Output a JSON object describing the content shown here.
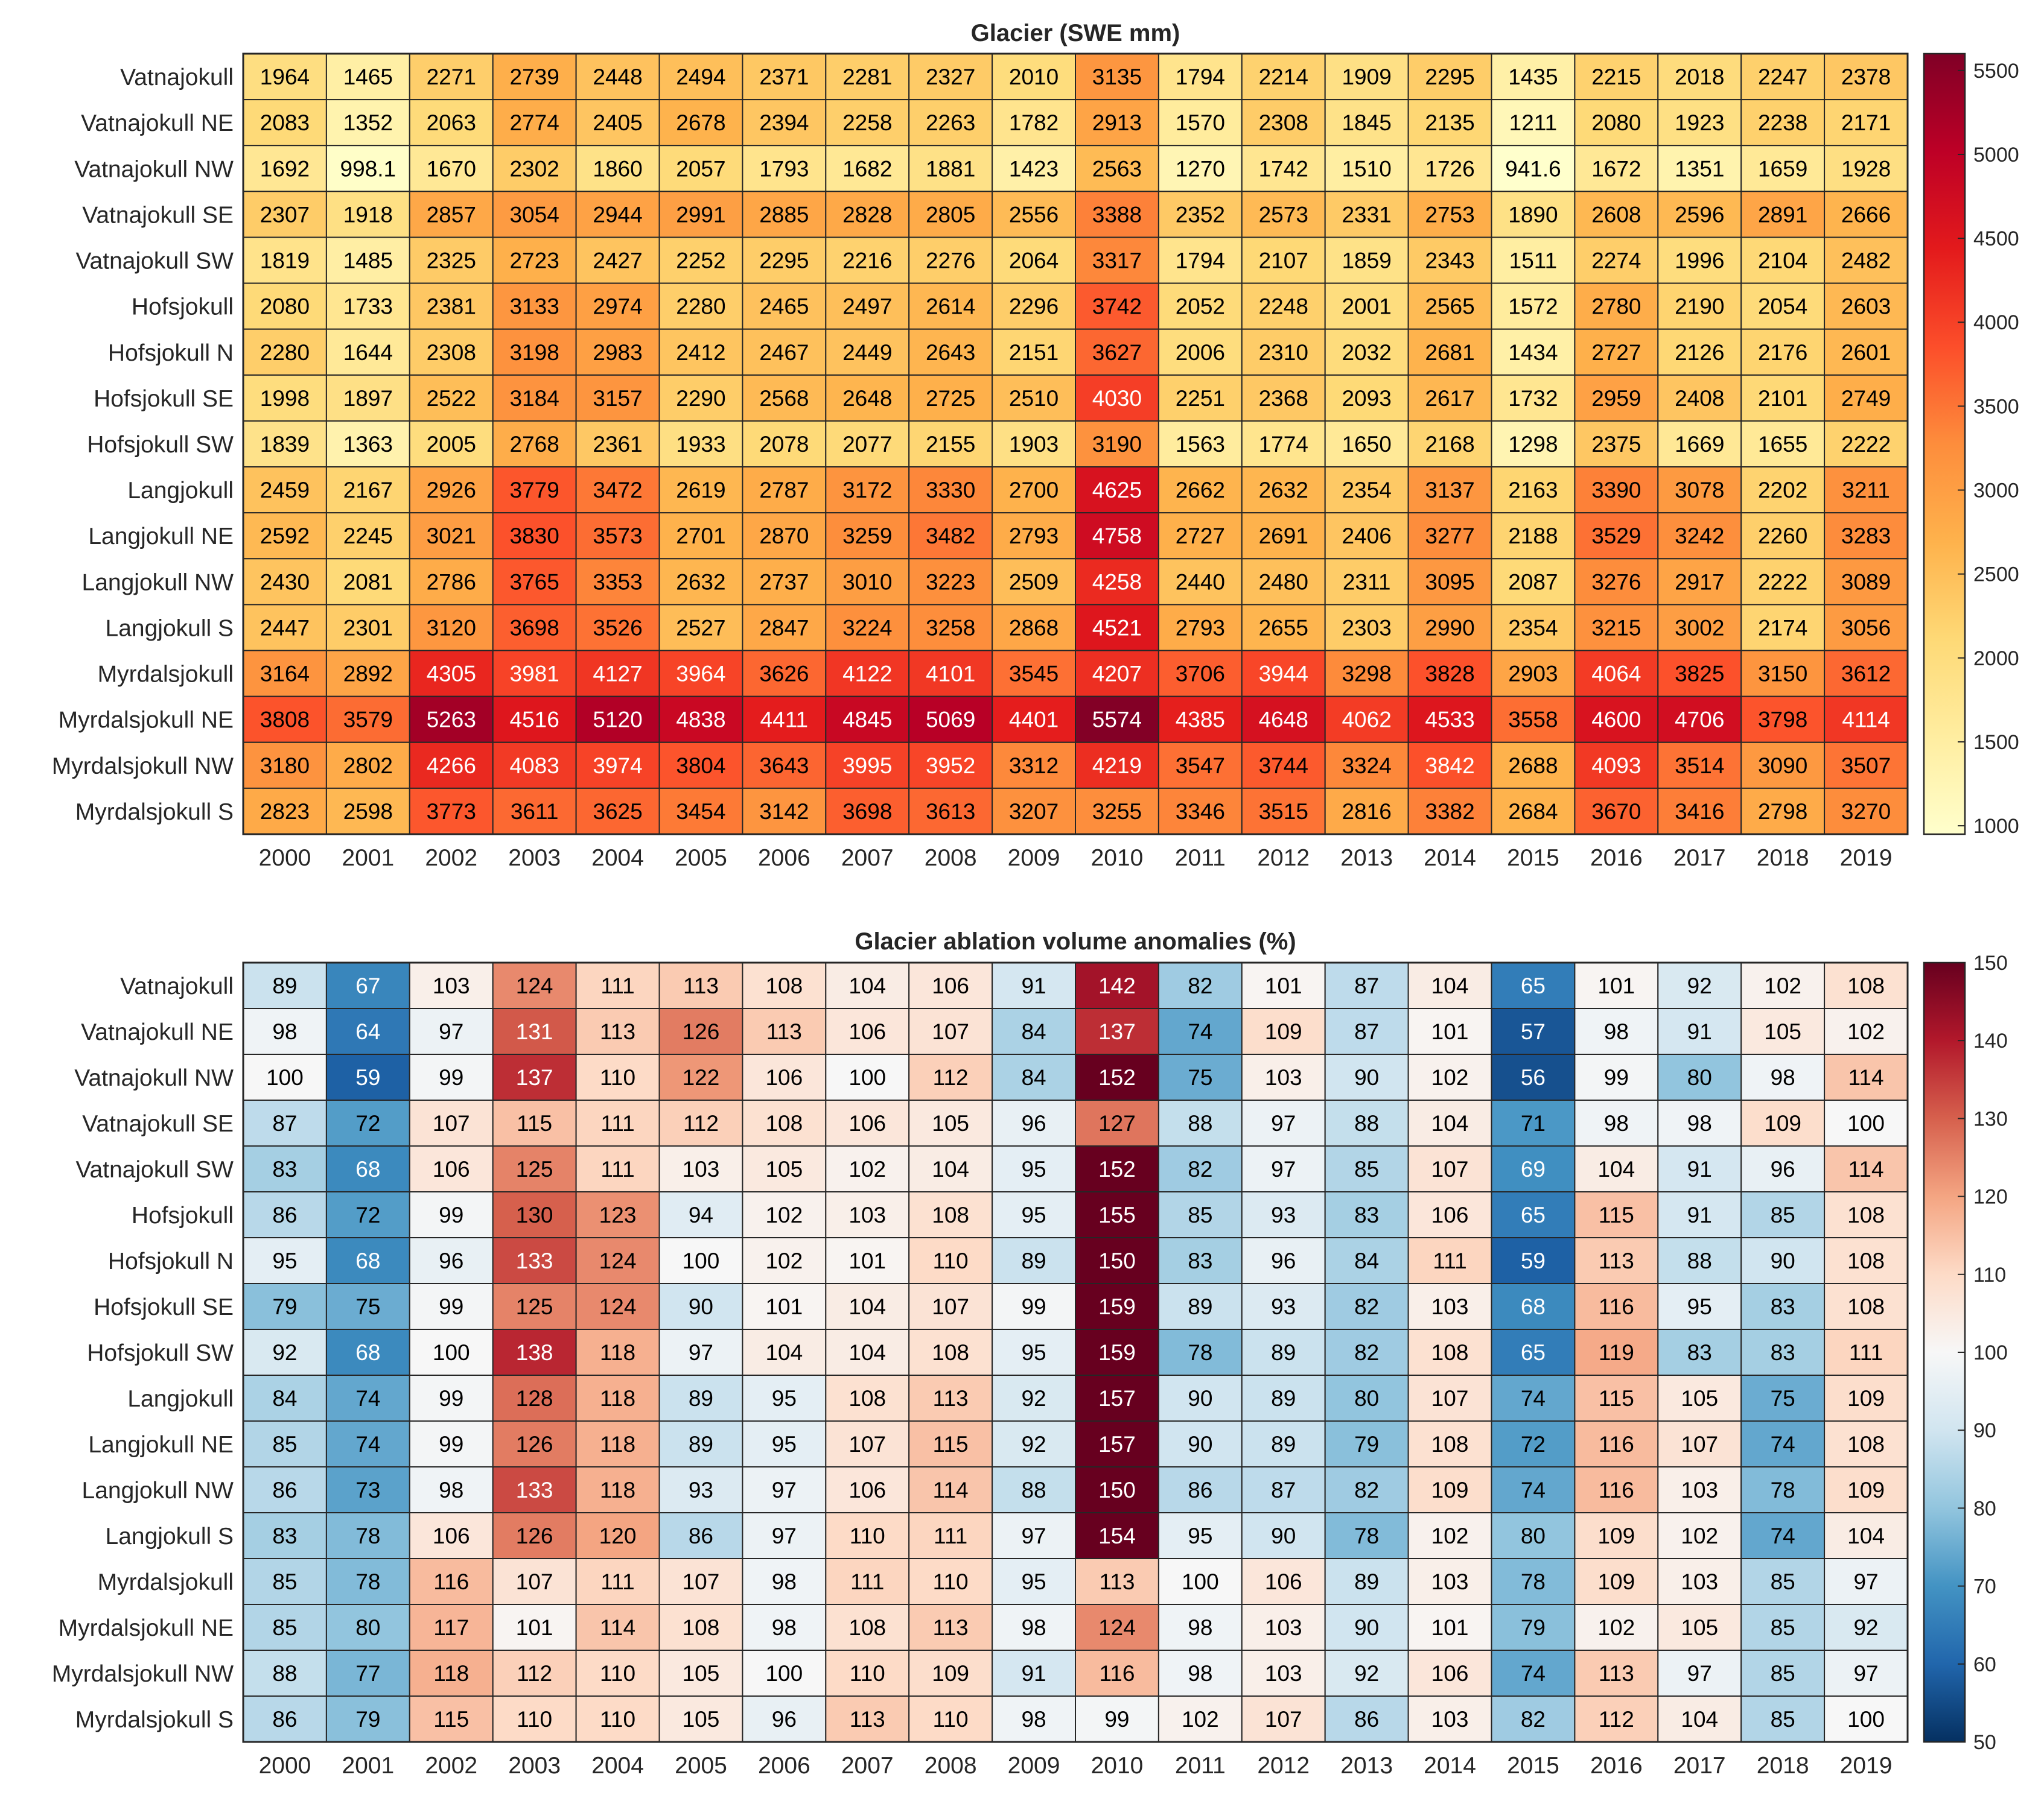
{
  "chart_data": [
    {
      "type": "heatmap",
      "title": "Glacier (SWE mm)",
      "xlabel": "",
      "ylabel": "",
      "x": [
        "2000",
        "2001",
        "2002",
        "2003",
        "2004",
        "2005",
        "2006",
        "2007",
        "2008",
        "2009",
        "2010",
        "2011",
        "2012",
        "2013",
        "2014",
        "2015",
        "2016",
        "2017",
        "2018",
        "2019"
      ],
      "y": [
        "Vatnajokull",
        "Vatnajokull NE",
        "Vatnajokull NW",
        "Vatnajokull SE",
        "Vatnajokull SW",
        "Hofsjokull",
        "Hofsjokull N",
        "Hofsjokull SE",
        "Hofsjokull SW",
        "Langjokull",
        "Langjokull NE",
        "Langjokull NW",
        "Langjokull S",
        "Myrdalsjokull",
        "Myrdalsjokull NE",
        "Myrdalsjokull NW",
        "Myrdalsjokull S"
      ],
      "values": [
        [
          "1964",
          "1465",
          "2271",
          "2739",
          "2448",
          "2494",
          "2371",
          "2281",
          "2327",
          "2010",
          "3135",
          "1794",
          "2214",
          "1909",
          "2295",
          "1435",
          "2215",
          "2018",
          "2247",
          "2378"
        ],
        [
          "2083",
          "1352",
          "2063",
          "2774",
          "2405",
          "2678",
          "2394",
          "2258",
          "2263",
          "1782",
          "2913",
          "1570",
          "2308",
          "1845",
          "2135",
          "1211",
          "2080",
          "1923",
          "2238",
          "2171"
        ],
        [
          "1692",
          "998.1",
          "1670",
          "2302",
          "1860",
          "2057",
          "1793",
          "1682",
          "1881",
          "1423",
          "2563",
          "1270",
          "1742",
          "1510",
          "1726",
          "941.6",
          "1672",
          "1351",
          "1659",
          "1928"
        ],
        [
          "2307",
          "1918",
          "2857",
          "3054",
          "2944",
          "2991",
          "2885",
          "2828",
          "2805",
          "2556",
          "3388",
          "2352",
          "2573",
          "2331",
          "2753",
          "1890",
          "2608",
          "2596",
          "2891",
          "2666"
        ],
        [
          "1819",
          "1485",
          "2325",
          "2723",
          "2427",
          "2252",
          "2295",
          "2216",
          "2276",
          "2064",
          "3317",
          "1794",
          "2107",
          "1859",
          "2343",
          "1511",
          "2274",
          "1996",
          "2104",
          "2482"
        ],
        [
          "2080",
          "1733",
          "2381",
          "3133",
          "2974",
          "2280",
          "2465",
          "2497",
          "2614",
          "2296",
          "3742",
          "2052",
          "2248",
          "2001",
          "2565",
          "1572",
          "2780",
          "2190",
          "2054",
          "2603"
        ],
        [
          "2280",
          "1644",
          "2308",
          "3198",
          "2983",
          "2412",
          "2467",
          "2449",
          "2643",
          "2151",
          "3627",
          "2006",
          "2310",
          "2032",
          "2681",
          "1434",
          "2727",
          "2126",
          "2176",
          "2601"
        ],
        [
          "1998",
          "1897",
          "2522",
          "3184",
          "3157",
          "2290",
          "2568",
          "2648",
          "2725",
          "2510",
          "4030",
          "2251",
          "2368",
          "2093",
          "2617",
          "1732",
          "2959",
          "2408",
          "2101",
          "2749"
        ],
        [
          "1839",
          "1363",
          "2005",
          "2768",
          "2361",
          "1933",
          "2078",
          "2077",
          "2155",
          "1903",
          "3190",
          "1563",
          "1774",
          "1650",
          "2168",
          "1298",
          "2375",
          "1669",
          "1655",
          "2222"
        ],
        [
          "2459",
          "2167",
          "2926",
          "3779",
          "3472",
          "2619",
          "2787",
          "3172",
          "3330",
          "2700",
          "4625",
          "2662",
          "2632",
          "2354",
          "3137",
          "2163",
          "3390",
          "3078",
          "2202",
          "3211"
        ],
        [
          "2592",
          "2245",
          "3021",
          "3830",
          "3573",
          "2701",
          "2870",
          "3259",
          "3482",
          "2793",
          "4758",
          "2727",
          "2691",
          "2406",
          "3277",
          "2188",
          "3529",
          "3242",
          "2260",
          "3283"
        ],
        [
          "2430",
          "2081",
          "2786",
          "3765",
          "3353",
          "2632",
          "2737",
          "3010",
          "3223",
          "2509",
          "4258",
          "2440",
          "2480",
          "2311",
          "3095",
          "2087",
          "3276",
          "2917",
          "2222",
          "3089"
        ],
        [
          "2447",
          "2301",
          "3120",
          "3698",
          "3526",
          "2527",
          "2847",
          "3224",
          "3258",
          "2868",
          "4521",
          "2793",
          "2655",
          "2303",
          "2990",
          "2354",
          "3215",
          "3002",
          "2174",
          "3056"
        ],
        [
          "3164",
          "2892",
          "4305",
          "3981",
          "4127",
          "3964",
          "3626",
          "4122",
          "4101",
          "3545",
          "4207",
          "3706",
          "3944",
          "3298",
          "3828",
          "2903",
          "4064",
          "3825",
          "3150",
          "3612"
        ],
        [
          "3808",
          "3579",
          "5263",
          "4516",
          "5120",
          "4838",
          "4411",
          "4845",
          "5069",
          "4401",
          "5574",
          "4385",
          "4648",
          "4062",
          "4533",
          "3558",
          "4600",
          "4706",
          "3798",
          "4114"
        ],
        [
          "3180",
          "2802",
          "4266",
          "4083",
          "3974",
          "3804",
          "3643",
          "3995",
          "3952",
          "3312",
          "4219",
          "3547",
          "3744",
          "3324",
          "3842",
          "2688",
          "4093",
          "3514",
          "3090",
          "3507"
        ],
        [
          "2823",
          "2598",
          "3773",
          "3611",
          "3625",
          "3454",
          "3142",
          "3698",
          "3613",
          "3207",
          "3255",
          "3346",
          "3515",
          "2816",
          "3382",
          "2684",
          "3670",
          "3416",
          "2798",
          "3270"
        ]
      ],
      "colorbar": {
        "range": [
          950,
          5600
        ],
        "ticks": [
          "1000",
          "1500",
          "2000",
          "2500",
          "3000",
          "3500",
          "4000",
          "4500",
          "5000",
          "5500"
        ],
        "colormap": "YlOrRd",
        "stops": [
          "#ffffcc",
          "#ffeda0",
          "#fed976",
          "#feb24c",
          "#fd8d3c",
          "#fc4e2a",
          "#e31a1c",
          "#bd0026",
          "#800026"
        ]
      }
    },
    {
      "type": "heatmap",
      "title": "Glacier ablation volume anomalies (%)",
      "xlabel": "",
      "ylabel": "",
      "x": [
        "2000",
        "2001",
        "2002",
        "2003",
        "2004",
        "2005",
        "2006",
        "2007",
        "2008",
        "2009",
        "2010",
        "2011",
        "2012",
        "2013",
        "2014",
        "2015",
        "2016",
        "2017",
        "2018",
        "2019"
      ],
      "y": [
        "Vatnajokull",
        "Vatnajokull NE",
        "Vatnajokull NW",
        "Vatnajokull SE",
        "Vatnajokull SW",
        "Hofsjokull",
        "Hofsjokull N",
        "Hofsjokull SE",
        "Hofsjokull SW",
        "Langjokull",
        "Langjokull NE",
        "Langjokull NW",
        "Langjokull S",
        "Myrdalsjokull",
        "Myrdalsjokull NE",
        "Myrdalsjokull NW",
        "Myrdalsjokull S"
      ],
      "values": [
        [
          "89",
          "67",
          "103",
          "124",
          "111",
          "113",
          "108",
          "104",
          "106",
          "91",
          "142",
          "82",
          "101",
          "87",
          "104",
          "65",
          "101",
          "92",
          "102",
          "108"
        ],
        [
          "98",
          "64",
          "97",
          "131",
          "113",
          "126",
          "113",
          "106",
          "107",
          "84",
          "137",
          "74",
          "109",
          "87",
          "101",
          "57",
          "98",
          "91",
          "105",
          "102"
        ],
        [
          "100",
          "59",
          "99",
          "137",
          "110",
          "122",
          "106",
          "100",
          "112",
          "84",
          "152",
          "75",
          "103",
          "90",
          "102",
          "56",
          "99",
          "80",
          "98",
          "114"
        ],
        [
          "87",
          "72",
          "107",
          "115",
          "111",
          "112",
          "108",
          "106",
          "105",
          "96",
          "127",
          "88",
          "97",
          "88",
          "104",
          "71",
          "98",
          "98",
          "109",
          "100"
        ],
        [
          "83",
          "68",
          "106",
          "125",
          "111",
          "103",
          "105",
          "102",
          "104",
          "95",
          "152",
          "82",
          "97",
          "85",
          "107",
          "69",
          "104",
          "91",
          "96",
          "114"
        ],
        [
          "86",
          "72",
          "99",
          "130",
          "123",
          "94",
          "102",
          "103",
          "108",
          "95",
          "155",
          "85",
          "93",
          "83",
          "106",
          "65",
          "115",
          "91",
          "85",
          "108"
        ],
        [
          "95",
          "68",
          "96",
          "133",
          "124",
          "100",
          "102",
          "101",
          "110",
          "89",
          "150",
          "83",
          "96",
          "84",
          "111",
          "59",
          "113",
          "88",
          "90",
          "108"
        ],
        [
          "79",
          "75",
          "99",
          "125",
          "124",
          "90",
          "101",
          "104",
          "107",
          "99",
          "159",
          "89",
          "93",
          "82",
          "103",
          "68",
          "116",
          "95",
          "83",
          "108"
        ],
        [
          "92",
          "68",
          "100",
          "138",
          "118",
          "97",
          "104",
          "104",
          "108",
          "95",
          "159",
          "78",
          "89",
          "82",
          "108",
          "65",
          "119",
          "83",
          "83",
          "111"
        ],
        [
          "84",
          "74",
          "99",
          "128",
          "118",
          "89",
          "95",
          "108",
          "113",
          "92",
          "157",
          "90",
          "89",
          "80",
          "107",
          "74",
          "115",
          "105",
          "75",
          "109"
        ],
        [
          "85",
          "74",
          "99",
          "126",
          "118",
          "89",
          "95",
          "107",
          "115",
          "92",
          "157",
          "90",
          "89",
          "79",
          "108",
          "72",
          "116",
          "107",
          "74",
          "108"
        ],
        [
          "86",
          "73",
          "98",
          "133",
          "118",
          "93",
          "97",
          "106",
          "114",
          "88",
          "150",
          "86",
          "87",
          "82",
          "109",
          "74",
          "116",
          "103",
          "78",
          "109"
        ],
        [
          "83",
          "78",
          "106",
          "126",
          "120",
          "86",
          "97",
          "110",
          "111",
          "97",
          "154",
          "95",
          "90",
          "78",
          "102",
          "80",
          "109",
          "102",
          "74",
          "104"
        ],
        [
          "85",
          "78",
          "116",
          "107",
          "111",
          "107",
          "98",
          "111",
          "110",
          "95",
          "113",
          "100",
          "106",
          "89",
          "103",
          "78",
          "109",
          "103",
          "85",
          "97"
        ],
        [
          "85",
          "80",
          "117",
          "101",
          "114",
          "108",
          "98",
          "108",
          "113",
          "98",
          "124",
          "98",
          "103",
          "90",
          "101",
          "79",
          "102",
          "105",
          "85",
          "92"
        ],
        [
          "88",
          "77",
          "118",
          "112",
          "110",
          "105",
          "100",
          "110",
          "109",
          "91",
          "116",
          "98",
          "103",
          "92",
          "106",
          "74",
          "113",
          "97",
          "85",
          "97"
        ],
        [
          "86",
          "79",
          "115",
          "110",
          "110",
          "105",
          "96",
          "113",
          "110",
          "98",
          "99",
          "102",
          "107",
          "86",
          "103",
          "82",
          "112",
          "104",
          "85",
          "100"
        ]
      ],
      "colorbar": {
        "range": [
          50,
          150
        ],
        "ticks": [
          "50",
          "60",
          "70",
          "80",
          "90",
          "100",
          "110",
          "120",
          "130",
          "140",
          "150"
        ],
        "colormap": "RdBu_r",
        "stops": [
          "#053061",
          "#2166ac",
          "#4393c3",
          "#92c5de",
          "#d1e5f0",
          "#f7f7f7",
          "#fddbc7",
          "#f4a582",
          "#d6604d",
          "#b2182b",
          "#67001f"
        ]
      }
    }
  ]
}
